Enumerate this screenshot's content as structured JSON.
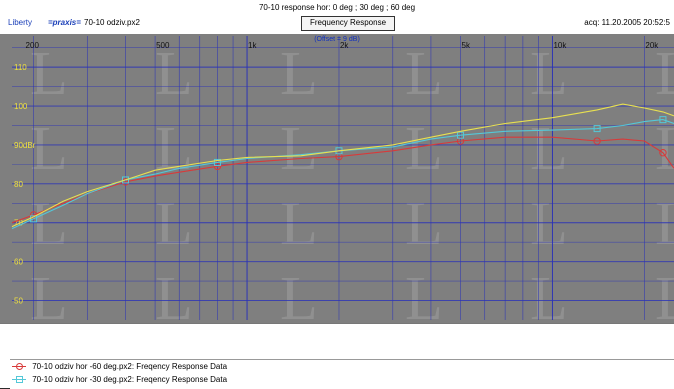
{
  "header": {
    "title": "70-10 response hor: 0 deg ; 30 deg ; 60 deg",
    "app_name": "Liberty",
    "brand": "=praxis=",
    "file_name": "70-10 odziv.px2",
    "view_button": "Frequency Response",
    "acquired": "acq: 11.20.2005 20:52:5"
  },
  "colors": {
    "plot_bg": "#7f7f7f",
    "grid": "#2a32b8",
    "axis_text": "#f0e23c",
    "series_red": "#d83a3a",
    "series_cyan": "#54c8d8",
    "series_yellow": "#e8e050"
  },
  "chart_data": {
    "type": "line",
    "title": "",
    "xlabel": "",
    "ylabel": "",
    "x_scale": "log",
    "xlim": [
      170,
      25000
    ],
    "ylim": [
      45,
      118
    ],
    "grid": true,
    "offset_note": "(Offset = 9 dB)",
    "x_ticks": [
      {
        "value": 200,
        "label": "200"
      },
      {
        "value": 500,
        "label": "500"
      },
      {
        "value": 1000,
        "label": "1k"
      },
      {
        "value": 2000,
        "label": "2k"
      },
      {
        "value": 5000,
        "label": "5k"
      },
      {
        "value": 10000,
        "label": "10k"
      },
      {
        "value": 20000,
        "label": "20k"
      }
    ],
    "y_ticks": [
      {
        "value": 110,
        "label": "110"
      },
      {
        "value": 100,
        "label": "100"
      },
      {
        "value": 90,
        "label": "90dBr"
      },
      {
        "value": 80,
        "label": "80"
      },
      {
        "value": 70,
        "label": "70"
      },
      {
        "value": 60,
        "label": "60"
      },
      {
        "value": 50,
        "label": "50"
      }
    ],
    "series": [
      {
        "name": "70-10 odziv hor -60 deg.px2:  Freqency Response Data",
        "color": "#d83a3a",
        "marker": "circle",
        "x": [
          170,
          200,
          250,
          300,
          400,
          500,
          600,
          800,
          1000,
          1500,
          2000,
          3000,
          4000,
          5000,
          7000,
          10000,
          14000,
          17000,
          20000,
          23000,
          25000
        ],
        "y": [
          70.0,
          72.0,
          75.0,
          77.5,
          80.5,
          82.0,
          83.0,
          84.5,
          85.5,
          86.5,
          87.0,
          88.5,
          90.0,
          91.0,
          92.0,
          92.0,
          91.0,
          91.5,
          91.0,
          88.0,
          84.0
        ]
      },
      {
        "name": "70-10 odziv hor -30 deg.px2:  Freqency Response Data",
        "color": "#54c8d8",
        "marker": "square",
        "x": [
          170,
          200,
          250,
          300,
          400,
          500,
          600,
          800,
          1000,
          1500,
          2000,
          3000,
          4000,
          5000,
          7000,
          10000,
          14000,
          17000,
          20000,
          23000,
          25000
        ],
        "y": [
          68.5,
          71.0,
          74.5,
          77.5,
          81.0,
          82.5,
          84.0,
          85.5,
          86.5,
          87.5,
          88.5,
          89.5,
          91.5,
          92.5,
          93.5,
          93.8,
          94.2,
          95.0,
          96.0,
          96.5,
          95.5
        ]
      },
      {
        "name": "",
        "color": "#e8e050",
        "marker": "none",
        "x": [
          170,
          200,
          250,
          300,
          400,
          500,
          600,
          800,
          1000,
          1500,
          2000,
          3000,
          4000,
          5000,
          7000,
          10000,
          14000,
          17000,
          20000,
          23000,
          25000
        ],
        "y": [
          69.0,
          71.5,
          75.5,
          78.0,
          81.0,
          83.5,
          84.5,
          86.0,
          86.8,
          87.2,
          88.5,
          90.0,
          92.0,
          93.5,
          95.5,
          97.0,
          99.0,
          100.5,
          99.5,
          98.5,
          97.5
        ]
      }
    ]
  },
  "legend": {
    "entries": [
      {
        "label": "70-10 odziv hor -60 deg.px2:  Freqency Response Data",
        "color": "#d83a3a",
        "marker": "circle"
      },
      {
        "label": "70-10 odziv hor -30 deg.px2:  Freqency Response Data",
        "color": "#54c8d8",
        "marker": "square"
      }
    ]
  }
}
